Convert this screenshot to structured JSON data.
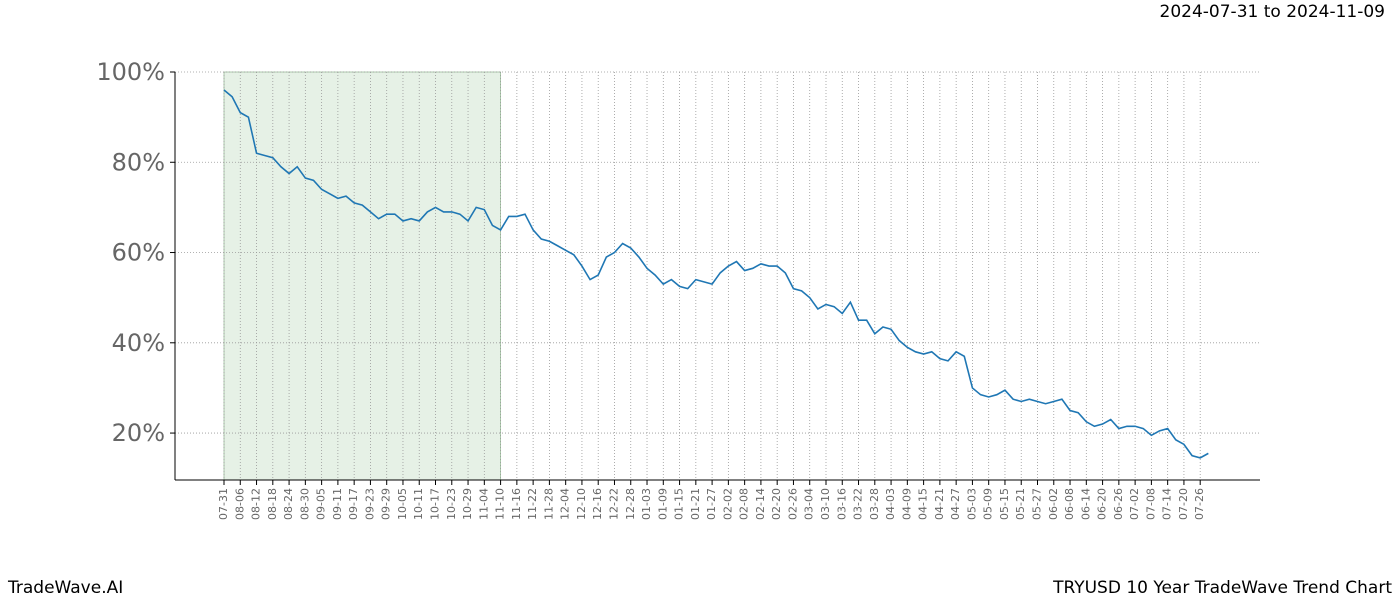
{
  "chart_data": {
    "type": "line",
    "subtitle": "2024-07-31 to 2024-11-09",
    "brand": "TradeWave.AI",
    "title": "TRYUSD 10 Year TradeWave Trend Chart",
    "categories": [
      "07-31",
      null,
      "08-06",
      null,
      "08-12",
      null,
      "08-18",
      null,
      "08-24",
      null,
      "08-30",
      null,
      "09-05",
      null,
      "09-11",
      null,
      "09-17",
      null,
      "09-23",
      null,
      "09-29",
      null,
      "10-05",
      null,
      "10-11",
      null,
      "10-17",
      null,
      "10-23",
      null,
      "10-29",
      null,
      "11-04",
      null,
      "11-10",
      null,
      "11-16",
      null,
      "11-22",
      null,
      "11-28",
      null,
      "12-04",
      null,
      "12-10",
      null,
      "12-16",
      null,
      "12-22",
      null,
      "12-28",
      null,
      "01-03",
      null,
      "01-09",
      null,
      "01-15",
      null,
      "01-21",
      null,
      "01-27",
      null,
      "02-02",
      null,
      "02-08",
      null,
      "02-14",
      null,
      "02-20",
      null,
      "02-26",
      null,
      "03-04",
      null,
      "03-10",
      null,
      "03-16",
      null,
      "03-22",
      null,
      "03-28",
      null,
      "04-03",
      null,
      "04-09",
      null,
      "04-15",
      null,
      "04-21",
      null,
      "04-27",
      null,
      "05-03",
      null,
      "05-09",
      null,
      "05-15",
      null,
      "05-21",
      null,
      "05-27",
      null,
      "06-02",
      null,
      "06-08",
      null,
      "06-14",
      null,
      "06-20",
      null,
      "06-26",
      null,
      "07-02",
      null,
      "07-08",
      null,
      "07-14",
      null,
      "07-20",
      null,
      "07-26",
      null
    ],
    "series": [
      {
        "color": "#1f77b4",
        "values": [
          96,
          94.5,
          91,
          90,
          82,
          81.5,
          81,
          79,
          77.5,
          79,
          76.5,
          76,
          74,
          73,
          72,
          72.5,
          71,
          70.5,
          69,
          67.5,
          68.5,
          68.5,
          67,
          67.5,
          67,
          69,
          70,
          69,
          69,
          68.5,
          67,
          70,
          69.5,
          66,
          65,
          68,
          68,
          68.5,
          65,
          63,
          62.5,
          61.5,
          60.5,
          59.5,
          57,
          54,
          55,
          59,
          60,
          62,
          61,
          59,
          56.5,
          55,
          53,
          54,
          52.5,
          52,
          54,
          53.5,
          53,
          55.5,
          57,
          58,
          56,
          56.5,
          57.5,
          57,
          57,
          55.5,
          52,
          51.5,
          50,
          47.5,
          48.5,
          48,
          46.5,
          49,
          45,
          45,
          42,
          43.5,
          43,
          40.5,
          39,
          38,
          37.5,
          38,
          36.5,
          36,
          38,
          37,
          30,
          28.5,
          28,
          28.5,
          29.5,
          27.5,
          27,
          27.5,
          27,
          26.5,
          27,
          27.5,
          25,
          24.5,
          22.5,
          21.5,
          22,
          23,
          21,
          21.5,
          21.5,
          21,
          19.5,
          20.5,
          21,
          18.5,
          17.5,
          15,
          14.5,
          15.5
        ]
      }
    ],
    "highlight_range": [
      0,
      34
    ],
    "highlight_color": "#e6f1e6",
    "ylim": [
      9.6,
      100
    ],
    "yticks": [
      {
        "value": 20,
        "label": "20%"
      },
      {
        "value": 40,
        "label": "40%"
      },
      {
        "value": 60,
        "label": "60%"
      },
      {
        "value": 80,
        "label": "80%"
      },
      {
        "value": 100,
        "label": "100%"
      }
    ],
    "grid": true
  }
}
